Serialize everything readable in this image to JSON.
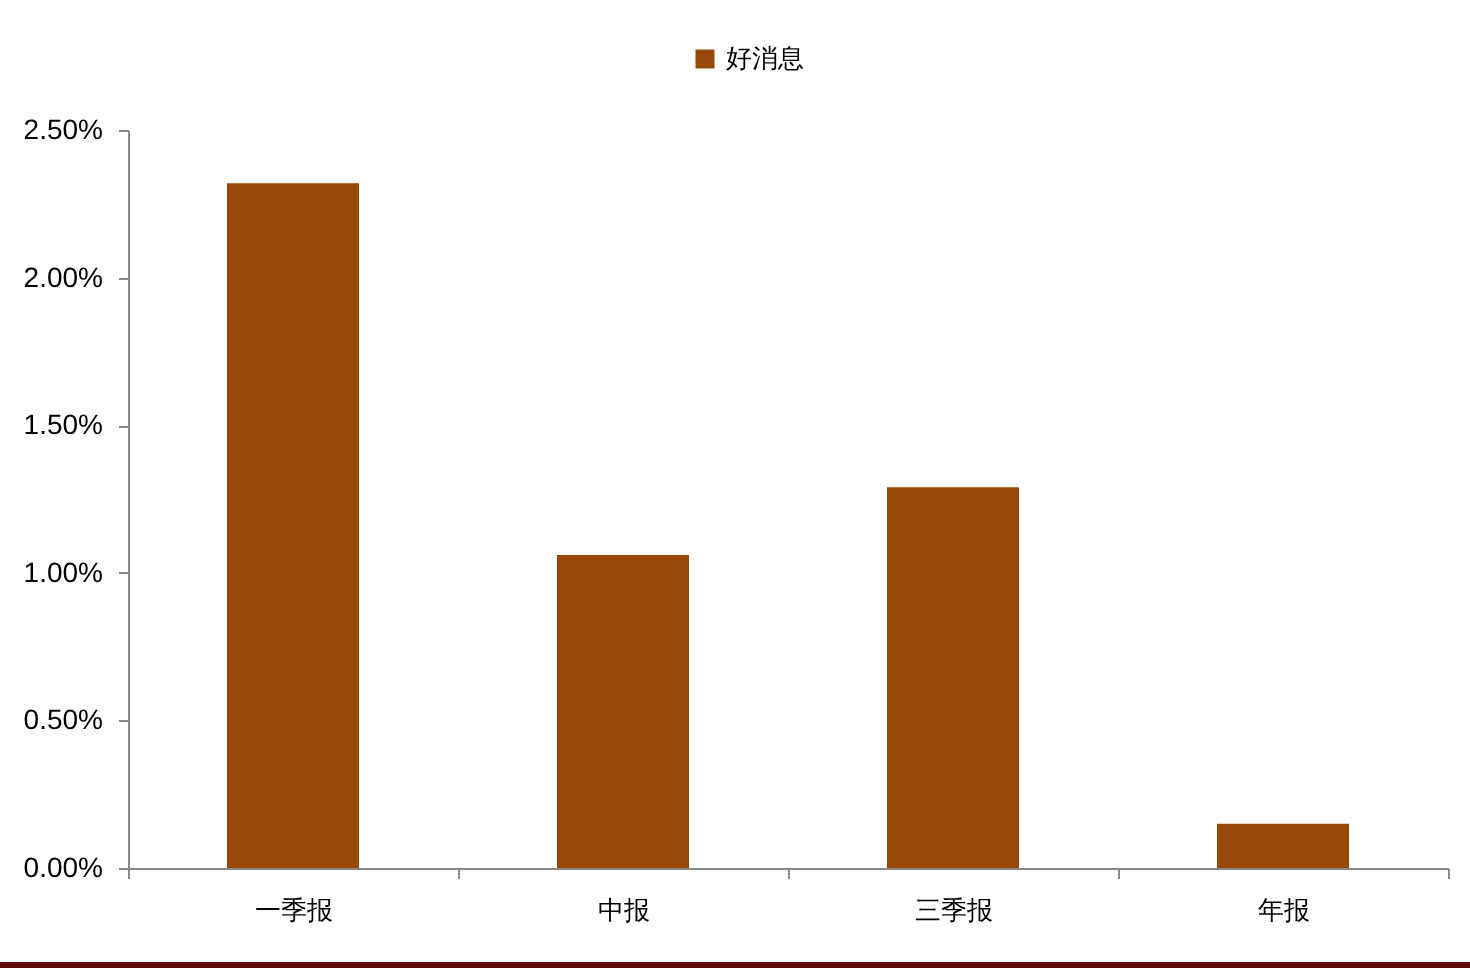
{
  "chart_data": {
    "type": "bar",
    "categories": [
      "一季报",
      "中报",
      "三季报",
      "年报"
    ],
    "series": [
      {
        "name": "好消息",
        "color": "#984807",
        "values": [
          2.32,
          1.06,
          1.29,
          0.15
        ]
      }
    ],
    "ylim": [
      0,
      2.5
    ],
    "yticks": [
      {
        "value": 0,
        "label": "0.00%"
      },
      {
        "value": 0.5,
        "label": "0.50%"
      },
      {
        "value": 1,
        "label": "1.00%"
      },
      {
        "value": 1.5,
        "label": "1.50%"
      },
      {
        "value": 2,
        "label": "2.00%"
      },
      {
        "value": 2.5,
        "label": "2.50%"
      }
    ],
    "grid": false,
    "legend": "top"
  }
}
